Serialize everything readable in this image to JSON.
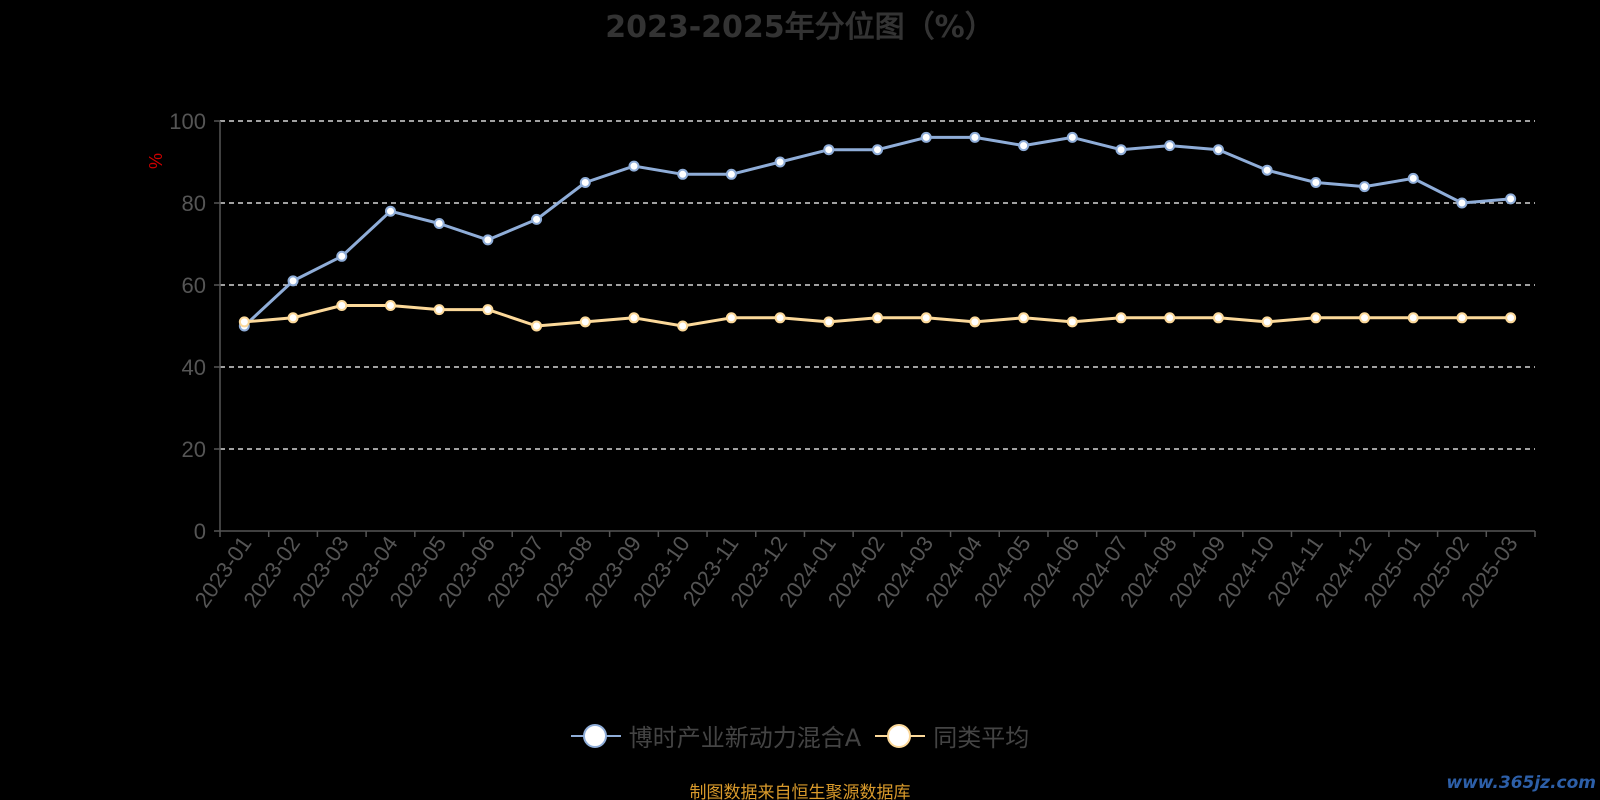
{
  "title": "2023-2025年分位图（%）",
  "source_note": "制图数据来自恒生聚源数据库",
  "watermark": "www.365jz.com",
  "colors": {
    "fund": "#8fadd8",
    "average": "#fcd99a",
    "grid": "#ffffff",
    "axis": "#555555",
    "tick_label": "#555555",
    "unit": "#cc0000",
    "source": "#d99a2b",
    "background": "#000000"
  },
  "legend": [
    {
      "name": "博时产业新动力混合A",
      "color": "#8fadd8"
    },
    {
      "name": "同类平均",
      "color": "#fcd99a"
    }
  ],
  "chart_data": {
    "type": "line",
    "title": "2023-2025年分位图（%）",
    "ylabel": "%",
    "ylim": [
      0,
      100
    ],
    "yticks": [
      0,
      20,
      40,
      60,
      80,
      100
    ],
    "grid": true,
    "legend_position": "bottom",
    "categories": [
      "2023-01",
      "2023-02",
      "2023-03",
      "2023-04",
      "2023-05",
      "2023-06",
      "2023-07",
      "2023-08",
      "2023-09",
      "2023-10",
      "2023-11",
      "2023-12",
      "2024-01",
      "2024-02",
      "2024-03",
      "2024-04",
      "2024-05",
      "2024-06",
      "2024-07",
      "2024-08",
      "2024-09",
      "2024-10",
      "2024-11",
      "2024-12",
      "2025-01",
      "2025-02",
      "2025-03"
    ],
    "series": [
      {
        "name": "博时产业新动力混合A",
        "values": [
          50,
          61,
          67,
          78,
          75,
          71,
          76,
          85,
          89,
          87,
          87,
          90,
          93,
          93,
          96,
          96,
          94,
          96,
          93,
          94,
          93,
          88,
          85,
          84,
          86,
          80,
          81
        ]
      },
      {
        "name": "同类平均",
        "values": [
          51,
          52,
          55,
          55,
          54,
          54,
          50,
          51,
          52,
          50,
          52,
          52,
          51,
          52,
          52,
          51,
          52,
          51,
          52,
          52,
          52,
          51,
          52,
          52,
          52,
          52,
          52
        ]
      }
    ]
  }
}
